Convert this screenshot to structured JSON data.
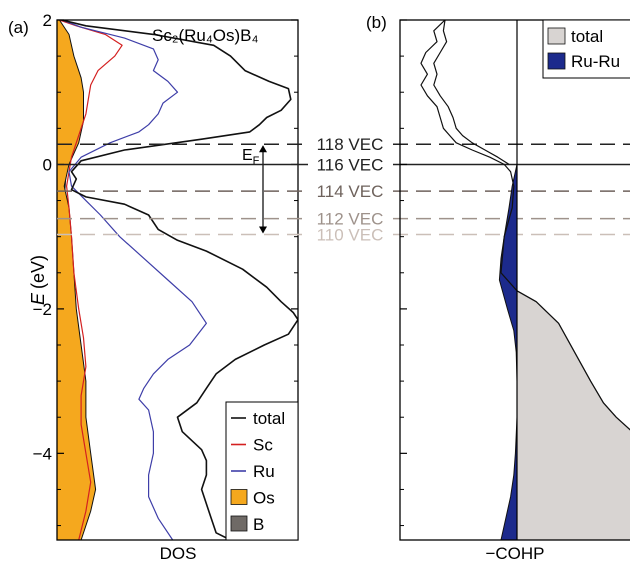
{
  "chart_data": [
    {
      "panel": "(a)",
      "type": "area",
      "title": "Sc₂(Ru₄Os)B₄",
      "xlabel": "DOS",
      "ylabel": "E (eV)",
      "ylabel_italic": "E",
      "ylabel_unit": "(eV)",
      "ylim": [
        -5.2,
        2
      ],
      "yticks": [
        2,
        0,
        -2,
        -4
      ],
      "ytick_labels": [
        "2",
        "0",
        "−2",
        "−4"
      ],
      "x_units": "arbitrary (DOS)",
      "series": [
        {
          "name": "total",
          "style": "line",
          "color": "#111111",
          "points": [
            [
              2.0,
              0.02
            ],
            [
              1.92,
              0.12
            ],
            [
              1.8,
              0.4
            ],
            [
              1.65,
              0.65
            ],
            [
              1.5,
              0.72
            ],
            [
              1.3,
              0.78
            ],
            [
              1.15,
              0.88
            ],
            [
              1.05,
              0.96
            ],
            [
              0.9,
              0.97
            ],
            [
              0.75,
              0.93
            ],
            [
              0.65,
              0.87
            ],
            [
              0.55,
              0.84
            ],
            [
              0.45,
              0.8
            ],
            [
              0.35,
              0.6
            ],
            [
              0.2,
              0.28
            ],
            [
              0.05,
              0.1
            ],
            [
              -0.1,
              0.06
            ],
            [
              -0.2,
              0.08
            ],
            [
              -0.35,
              0.06
            ],
            [
              -0.45,
              0.12
            ],
            [
              -0.55,
              0.28
            ],
            [
              -0.7,
              0.38
            ],
            [
              -0.9,
              0.42
            ],
            [
              -1.05,
              0.5
            ],
            [
              -1.2,
              0.62
            ],
            [
              -1.45,
              0.77
            ],
            [
              -1.7,
              0.87
            ],
            [
              -1.9,
              0.93
            ],
            [
              -2.05,
              0.98
            ],
            [
              -2.15,
              1.0
            ],
            [
              -2.35,
              0.96
            ],
            [
              -2.5,
              0.86
            ],
            [
              -2.7,
              0.74
            ],
            [
              -2.9,
              0.66
            ],
            [
              -3.1,
              0.62
            ],
            [
              -3.3,
              0.58
            ],
            [
              -3.5,
              0.5
            ],
            [
              -3.7,
              0.52
            ],
            [
              -3.95,
              0.6
            ],
            [
              -4.1,
              0.62
            ],
            [
              -4.3,
              0.62
            ],
            [
              -4.5,
              0.6
            ],
            [
              -4.7,
              0.62
            ],
            [
              -4.9,
              0.64
            ],
            [
              -5.1,
              0.66
            ],
            [
              -5.2,
              0.72
            ]
          ]
        },
        {
          "name": "Sc",
          "style": "line",
          "color": "#d42020",
          "points": [
            [
              2.0,
              0.01
            ],
            [
              1.92,
              0.08
            ],
            [
              1.8,
              0.2
            ],
            [
              1.65,
              0.27
            ],
            [
              1.5,
              0.24
            ],
            [
              1.3,
              0.17
            ],
            [
              1.1,
              0.14
            ],
            [
              0.9,
              0.13
            ],
            [
              0.7,
              0.12
            ],
            [
              0.5,
              0.1
            ],
            [
              0.3,
              0.08
            ],
            [
              0.1,
              0.06
            ],
            [
              -0.1,
              0.05
            ],
            [
              -0.3,
              0.04
            ],
            [
              -0.6,
              0.05
            ],
            [
              -1.0,
              0.06
            ],
            [
              -1.5,
              0.07
            ],
            [
              -2.0,
              0.09
            ],
            [
              -2.4,
              0.11
            ],
            [
              -2.8,
              0.12
            ],
            [
              -3.2,
              0.1
            ],
            [
              -3.6,
              0.1
            ],
            [
              -4.0,
              0.12
            ],
            [
              -4.4,
              0.14
            ],
            [
              -4.8,
              0.12
            ],
            [
              -5.2,
              0.09
            ]
          ]
        },
        {
          "name": "Ru",
          "style": "line",
          "color": "#3e3ea8",
          "points": [
            [
              2.0,
              0.02
            ],
            [
              1.9,
              0.1
            ],
            [
              1.75,
              0.28
            ],
            [
              1.6,
              0.4
            ],
            [
              1.45,
              0.42
            ],
            [
              1.3,
              0.4
            ],
            [
              1.15,
              0.46
            ],
            [
              1.0,
              0.5
            ],
            [
              0.85,
              0.44
            ],
            [
              0.7,
              0.42
            ],
            [
              0.55,
              0.38
            ],
            [
              0.45,
              0.34
            ],
            [
              0.3,
              0.22
            ],
            [
              0.1,
              0.1
            ],
            [
              -0.1,
              0.05
            ],
            [
              -0.3,
              0.06
            ],
            [
              -0.5,
              0.12
            ],
            [
              -0.7,
              0.18
            ],
            [
              -1.0,
              0.26
            ],
            [
              -1.3,
              0.36
            ],
            [
              -1.6,
              0.46
            ],
            [
              -1.9,
              0.56
            ],
            [
              -2.2,
              0.62
            ],
            [
              -2.5,
              0.55
            ],
            [
              -2.7,
              0.46
            ],
            [
              -2.9,
              0.4
            ],
            [
              -3.1,
              0.36
            ],
            [
              -3.25,
              0.34
            ],
            [
              -3.4,
              0.38
            ],
            [
              -3.7,
              0.4
            ],
            [
              -4.0,
              0.4
            ],
            [
              -4.3,
              0.38
            ],
            [
              -4.6,
              0.38
            ],
            [
              -4.9,
              0.42
            ],
            [
              -5.2,
              0.48
            ]
          ]
        },
        {
          "name": "Os",
          "style": "fill",
          "color": "#f5a81e",
          "points": [
            [
              2.0,
              0.01
            ],
            [
              1.8,
              0.05
            ],
            [
              1.5,
              0.07
            ],
            [
              1.2,
              0.1
            ],
            [
              1.0,
              0.11
            ],
            [
              0.6,
              0.11
            ],
            [
              0.3,
              0.09
            ],
            [
              0.0,
              0.05
            ],
            [
              -0.3,
              0.03
            ],
            [
              -0.6,
              0.05
            ],
            [
              -1.0,
              0.06
            ],
            [
              -1.5,
              0.07
            ],
            [
              -2.0,
              0.08
            ],
            [
              -2.5,
              0.1
            ],
            [
              -3.0,
              0.12
            ],
            [
              -3.5,
              0.12
            ],
            [
              -4.0,
              0.14
            ],
            [
              -4.5,
              0.16
            ],
            [
              -4.8,
              0.14
            ],
            [
              -5.0,
              0.12
            ],
            [
              -5.2,
              0.1
            ]
          ]
        },
        {
          "name": "B",
          "style": "fill",
          "color": "#6f6a66",
          "points": [
            [
              2.0,
              0.0
            ],
            [
              1.8,
              0.03
            ],
            [
              1.5,
              0.04
            ],
            [
              1.0,
              0.05
            ],
            [
              0.5,
              0.05
            ],
            [
              0.0,
              0.04
            ],
            [
              -0.5,
              0.03
            ],
            [
              -1.0,
              0.04
            ],
            [
              -1.5,
              0.04
            ],
            [
              -2.0,
              0.05
            ],
            [
              -2.5,
              0.05
            ],
            [
              -3.0,
              0.05
            ],
            [
              -3.5,
              0.06
            ],
            [
              -4.0,
              0.07
            ],
            [
              -4.5,
              0.08
            ],
            [
              -5.0,
              0.09
            ],
            [
              -5.2,
              0.09
            ]
          ]
        }
      ],
      "legend": {
        "placement": "bottom-right",
        "entries": [
          {
            "label": "total",
            "kind": "line",
            "color": "#111111"
          },
          {
            "label": "Sc",
            "kind": "line",
            "color": "#d42020"
          },
          {
            "label": "Ru",
            "kind": "line",
            "color": "#3e3ea8"
          },
          {
            "label": "Os",
            "kind": "patch",
            "color": "#f5a81e"
          },
          {
            "label": "B",
            "kind": "patch",
            "color": "#6f6a66"
          }
        ]
      },
      "annotation": {
        "label": "E",
        "subscript": "F",
        "arrow_from": 0.28,
        "arrow_to": -0.97
      }
    },
    {
      "panel": "(b)",
      "type": "area",
      "xlabel": "−COHP",
      "ylim": [
        -5.2,
        2
      ],
      "yticks": [
        2,
        0,
        -2,
        -4
      ],
      "zero_line": true,
      "series": [
        {
          "name": "total",
          "style": "fill",
          "color": "#d8d4d2",
          "points": [
            [
              -1.75,
              0.0
            ],
            [
              -1.9,
              0.12
            ],
            [
              -2.2,
              0.26
            ],
            [
              -2.6,
              0.36
            ],
            [
              -3.0,
              0.46
            ],
            [
              -3.3,
              0.54
            ],
            [
              -3.5,
              0.62
            ],
            [
              -3.7,
              0.72
            ],
            [
              -5.2,
              0.72
            ]
          ]
        },
        {
          "name": "Ru-Ru",
          "style": "fill",
          "color": "#1c2a8c",
          "points": [
            [
              0.0,
              0.0
            ],
            [
              -0.3,
              -0.03
            ],
            [
              -0.6,
              -0.05
            ],
            [
              -1.0,
              -0.08
            ],
            [
              -1.3,
              -0.1
            ],
            [
              -1.6,
              -0.11
            ],
            [
              -2.0,
              -0.06
            ],
            [
              -2.3,
              -0.02
            ],
            [
              -2.6,
              -0.005
            ],
            [
              -3.0,
              0.0
            ],
            [
              -3.5,
              0.0
            ],
            [
              -4.0,
              -0.01
            ],
            [
              -4.3,
              -0.02
            ],
            [
              -4.6,
              -0.04
            ],
            [
              -4.9,
              -0.07
            ],
            [
              -5.2,
              -0.1
            ]
          ]
        },
        {
          "name": "total",
          "style": "line",
          "color": "#111111",
          "points": [
            [
              2.0,
              -0.45
            ],
            [
              1.85,
              -0.52
            ],
            [
              1.7,
              -0.5
            ],
            [
              1.55,
              -0.57
            ],
            [
              1.4,
              -0.6
            ],
            [
              1.25,
              -0.56
            ],
            [
              1.1,
              -0.6
            ],
            [
              0.95,
              -0.56
            ],
            [
              0.8,
              -0.5
            ],
            [
              0.65,
              -0.48
            ],
            [
              0.5,
              -0.46
            ],
            [
              0.4,
              -0.42
            ],
            [
              0.3,
              -0.38
            ],
            [
              0.2,
              -0.28
            ],
            [
              0.1,
              -0.17
            ],
            [
              0.0,
              -0.08
            ],
            [
              -0.1,
              -0.04
            ],
            [
              -0.3,
              -0.02
            ],
            [
              -0.6,
              -0.03
            ],
            [
              -1.0,
              -0.08
            ],
            [
              -1.5,
              -0.1
            ],
            [
              -1.75,
              0.0
            ],
            [
              -1.9,
              0.12
            ],
            [
              -2.2,
              0.26
            ],
            [
              -2.6,
              0.36
            ],
            [
              -3.0,
              0.46
            ],
            [
              -3.3,
              0.54
            ],
            [
              -3.5,
              0.62
            ],
            [
              -3.7,
              0.72
            ]
          ]
        },
        {
          "name": "Ru-Ru",
          "style": "line",
          "color": "#111111",
          "points": [
            [
              2.0,
              -0.45
            ],
            [
              1.85,
              -0.46
            ],
            [
              1.7,
              -0.44
            ],
            [
              1.55,
              -0.48
            ],
            [
              1.4,
              -0.52
            ],
            [
              1.25,
              -0.5
            ],
            [
              1.1,
              -0.52
            ],
            [
              0.95,
              -0.48
            ],
            [
              0.8,
              -0.43
            ],
            [
              0.65,
              -0.4
            ],
            [
              0.5,
              -0.38
            ],
            [
              0.4,
              -0.34
            ],
            [
              0.3,
              -0.28
            ],
            [
              0.2,
              -0.2
            ],
            [
              0.1,
              -0.12
            ],
            [
              0.0,
              -0.05
            ]
          ]
        }
      ],
      "legend": {
        "placement": "top-right",
        "entries": [
          {
            "label": "total",
            "kind": "patch",
            "color": "#d8d4d2"
          },
          {
            "label": "Ru-Ru",
            "kind": "patch",
            "color": "#1c2a8c"
          }
        ]
      }
    }
  ],
  "vec_lines": [
    {
      "label": "118 VEC",
      "energy": 0.28,
      "color": "#222222",
      "style": "dashed"
    },
    {
      "label": "116 VEC",
      "energy": 0.0,
      "color": "#222222",
      "style": "solid"
    },
    {
      "label": "114 VEC",
      "energy": -0.37,
      "color": "#6e625c",
      "style": "dashed"
    },
    {
      "label": "112 VEC",
      "energy": -0.75,
      "color": "#9e928b",
      "style": "dashed"
    },
    {
      "label": "110 VEC",
      "energy": -0.97,
      "color": "#cbbfb8",
      "style": "dashed"
    }
  ]
}
